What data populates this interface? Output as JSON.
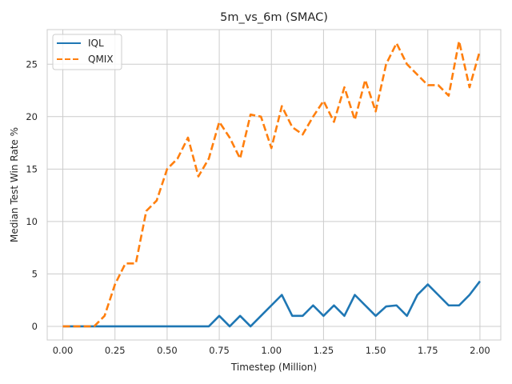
{
  "chart_data": {
    "type": "line",
    "title": "5m_vs_6m (SMAC)",
    "xlabel": "Timestep (Million)",
    "ylabel": "Median Test Win Rate %",
    "xlim": [
      -0.075,
      2.1
    ],
    "ylim": [
      -1.3,
      28.3
    ],
    "xticks": [
      0.0,
      0.25,
      0.5,
      0.75,
      1.0,
      1.25,
      1.5,
      1.75,
      2.0
    ],
    "xtick_labels": [
      "0.00",
      "0.25",
      "0.50",
      "0.75",
      "1.00",
      "1.25",
      "1.50",
      "1.75",
      "2.00"
    ],
    "yticks": [
      0,
      5,
      10,
      15,
      20,
      25
    ],
    "ytick_labels": [
      "0",
      "5",
      "10",
      "15",
      "20",
      "25"
    ],
    "grid": true,
    "legend_position": "top-left",
    "x": [
      0.0,
      0.05,
      0.1,
      0.15,
      0.2,
      0.25,
      0.3,
      0.35,
      0.4,
      0.45,
      0.5,
      0.55,
      0.6,
      0.65,
      0.7,
      0.75,
      0.8,
      0.85,
      0.9,
      0.95,
      1.0,
      1.05,
      1.1,
      1.15,
      1.2,
      1.25,
      1.3,
      1.35,
      1.4,
      1.45,
      1.5,
      1.55,
      1.6,
      1.65,
      1.7,
      1.75,
      1.8,
      1.85,
      1.9,
      1.95,
      2.0
    ],
    "series": [
      {
        "name": "IQL",
        "color": "#1f77b4",
        "style": "solid",
        "values": [
          0,
          0,
          0,
          0,
          0,
          0,
          0,
          0,
          0,
          0,
          0,
          0,
          0,
          0,
          0,
          1,
          0,
          1,
          0,
          1,
          2,
          3,
          1,
          1,
          2,
          1,
          2,
          1,
          3,
          2,
          1,
          1.9,
          2,
          1,
          3,
          4,
          3,
          2,
          2,
          3,
          4.3
        ]
      },
      {
        "name": "QMIX",
        "color": "#ff7f0e",
        "style": "dashed",
        "values": [
          0,
          0,
          0,
          0,
          1,
          4,
          6,
          6,
          11,
          12,
          15,
          16,
          18,
          14.3,
          16,
          19.5,
          18,
          16,
          20.2,
          20,
          17,
          21,
          19,
          18.3,
          20,
          21.5,
          19.5,
          22.8,
          19.7,
          23.5,
          20.5,
          25,
          27,
          25,
          24,
          23,
          23,
          22,
          27.2,
          22.8,
          26.3
        ]
      }
    ]
  }
}
